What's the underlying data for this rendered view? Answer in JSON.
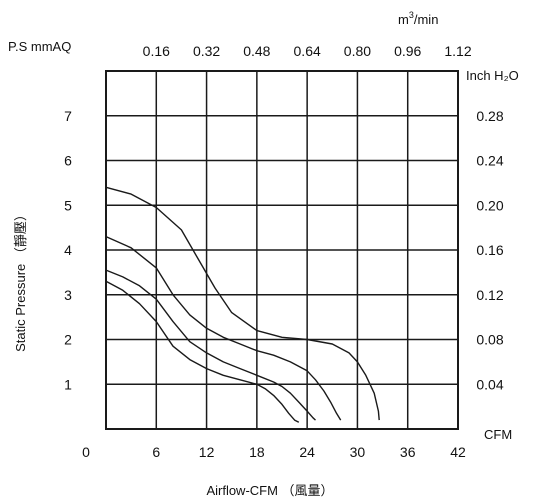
{
  "chart_data": {
    "type": "line",
    "title": "",
    "xlabel": "Airflow-CFM （風量）",
    "ylabel": "Static Pressure （靜壓）",
    "left_unit": "P.S mmAQ",
    "top_unit_base": "m",
    "top_unit_sup": "3",
    "top_unit_tail": "/min",
    "right_unit": "Inch H₂O",
    "x_unit": "CFM",
    "xlim": [
      0,
      42
    ],
    "ylim": [
      0,
      8
    ],
    "x_ticks": [
      "0",
      "6",
      "12",
      "18",
      "24",
      "30",
      "36",
      "42"
    ],
    "y_ticks": [
      "1",
      "2",
      "3",
      "4",
      "5",
      "6",
      "7"
    ],
    "top_ticks": [
      "0.16",
      "0.32",
      "0.48",
      "0.64",
      "0.80",
      "0.96",
      "1.12"
    ],
    "right_ticks": [
      "0.04",
      "0.08",
      "0.12",
      "0.16",
      "0.20",
      "0.24",
      "0.28"
    ],
    "grid": true,
    "series": [
      {
        "x": [
          0,
          3,
          6,
          9,
          11,
          13,
          15,
          18,
          21,
          24,
          27,
          29,
          30,
          31,
          32,
          32.5,
          32.6
        ],
        "y": [
          5.4,
          5.25,
          4.95,
          4.45,
          3.8,
          3.15,
          2.6,
          2.2,
          2.05,
          2.0,
          1.9,
          1.7,
          1.5,
          1.2,
          0.8,
          0.4,
          0.2
        ]
      },
      {
        "x": [
          0,
          3,
          6,
          8,
          10,
          12,
          14,
          16,
          18,
          20,
          22,
          24,
          25,
          26,
          26.8,
          27.5,
          28
        ],
        "y": [
          4.3,
          4.05,
          3.6,
          3.0,
          2.55,
          2.25,
          2.05,
          1.9,
          1.75,
          1.65,
          1.5,
          1.3,
          1.1,
          0.85,
          0.6,
          0.35,
          0.2
        ]
      },
      {
        "x": [
          0,
          2,
          4,
          6,
          8,
          10,
          12,
          14,
          16,
          18,
          20,
          21,
          22,
          23,
          24,
          24.7,
          25
        ],
        "y": [
          3.55,
          3.4,
          3.2,
          2.9,
          2.4,
          1.95,
          1.7,
          1.5,
          1.35,
          1.2,
          1.05,
          0.95,
          0.8,
          0.6,
          0.4,
          0.25,
          0.2
        ]
      },
      {
        "x": [
          0,
          2,
          4,
          6,
          8,
          10,
          12,
          14,
          16,
          18,
          19,
          20,
          21,
          21.8,
          22.5,
          23
        ],
        "y": [
          3.3,
          3.1,
          2.8,
          2.4,
          1.85,
          1.55,
          1.35,
          1.2,
          1.1,
          1.0,
          0.9,
          0.75,
          0.55,
          0.35,
          0.2,
          0.15
        ]
      }
    ]
  }
}
